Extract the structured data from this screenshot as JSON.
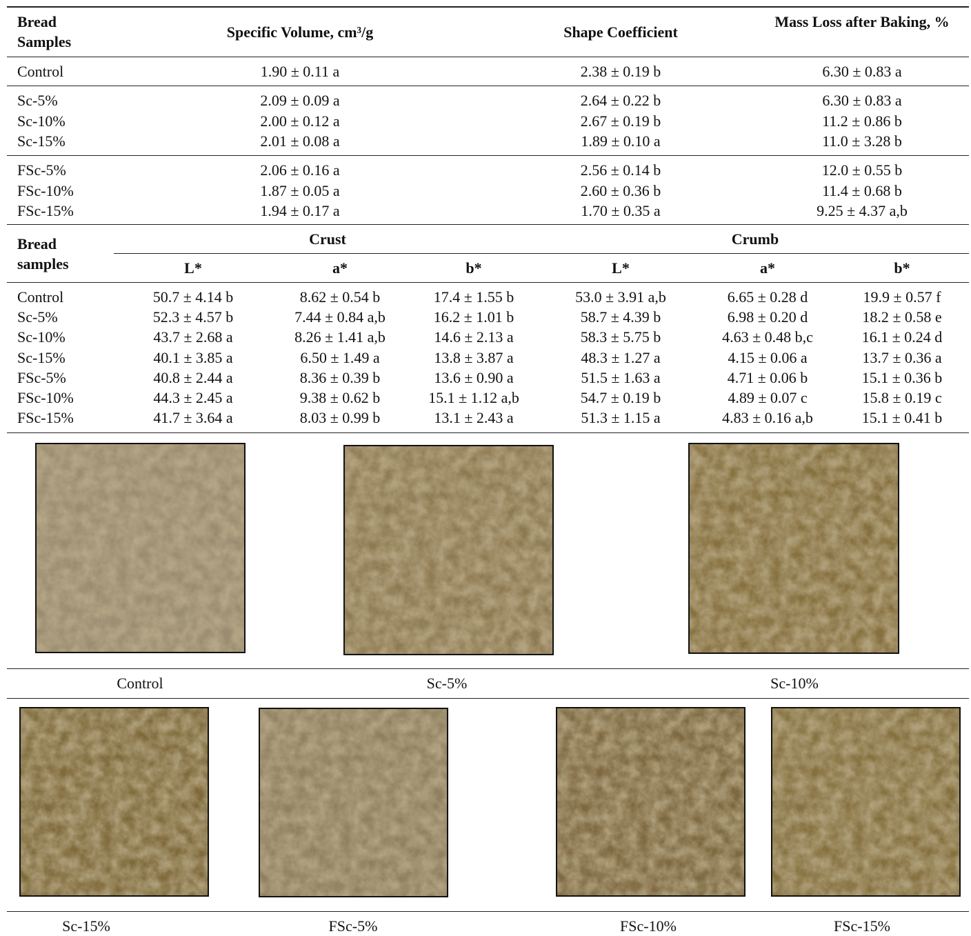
{
  "table1": {
    "header": [
      "Bread Samples",
      "Specific Volume, cm³/g",
      "Shape Coefficient",
      "Mass Loss after Baking, %"
    ],
    "groups": [
      [
        [
          "Control",
          "1.90 ± 0.11 a",
          "2.38 ± 0.19 b",
          "6.30 ± 0.83 a"
        ]
      ],
      [
        [
          "Sc-5%",
          "2.09 ± 0.09 a",
          "2.64 ± 0.22 b",
          "6.30 ± 0.83 a"
        ],
        [
          "Sc-10%",
          "2.00 ± 0.12 a",
          "2.67 ± 0.19 b",
          "11.2 ± 0.86 b"
        ],
        [
          "Sc-15%",
          "2.01 ± 0.08 a",
          "1.89 ± 0.10 a",
          "11.0 ± 3.28 b"
        ]
      ],
      [
        [
          "FSc-5%",
          "2.06 ± 0.16 a",
          "2.56 ± 0.14 b",
          "12.0 ± 0.55 b"
        ],
        [
          "FSc-10%",
          "1.87 ± 0.05 a",
          "2.60 ± 0.36 b",
          "11.4 ± 0.68 b"
        ],
        [
          "FSc-15%",
          "1.94 ± 0.17 a",
          "1.70 ± 0.35 a",
          "9.25 ± 4.37 a,b"
        ]
      ]
    ]
  },
  "table2": {
    "header": {
      "sample": "Bread samples",
      "crust": "Crust",
      "crumb": "Crumb",
      "columns": [
        "L*",
        "a*",
        "b*",
        "L*",
        "a*",
        "b*"
      ]
    },
    "rows": [
      [
        "Control",
        "50.7 ± 4.14 b",
        "8.62 ± 0.54 b",
        "17.4 ± 1.55 b",
        "53.0 ± 3.91 a,b",
        "6.65 ± 0.28 d",
        "19.9 ± 0.57 f"
      ],
      [
        "Sc-5%",
        "52.3 ± 4.57 b",
        "7.44 ± 0.84 a,b",
        "16.2 ± 1.01 b",
        "58.7 ± 4.39 b",
        "6.98 ± 0.20 d",
        "18.2 ± 0.58 e"
      ],
      [
        "Sc-10%",
        "43.7 ± 2.68 a",
        "8.26 ± 1.41 a,b",
        "14.6 ± 2.13 a",
        "58.3 ± 5.75 b",
        "4.63 ± 0.48 b,c",
        "16.1 ± 0.24 d"
      ],
      [
        "Sc-15%",
        "40.1 ± 3.85 a",
        "6.50 ± 1.49 a",
        "13.8 ± 3.87 a",
        "48.3 ± 1.27 a",
        "4.15 ± 0.06 a",
        "13.7 ± 0.36 a"
      ],
      [
        "FSc-5%",
        "40.8 ± 2.44 a",
        "8.36 ± 0.39 b",
        "13.6 ± 0.90 a",
        "51.5 ± 1.63 a",
        "4.71 ± 0.06 b",
        "15.1 ± 0.36 b"
      ],
      [
        "FSc-10%",
        "44.3 ± 2.45 a",
        "9.38 ± 0.62 b",
        "15.1 ± 1.12 a,b",
        "54.7 ± 0.19 b",
        "4.89 ± 0.07 c",
        "15.8 ± 0.19 c"
      ],
      [
        "FSc-15%",
        "41.7 ± 3.64 a",
        "8.03 ± 0.99 b",
        "13.1 ± 2.43 a",
        "51.3 ± 1.15 a",
        "4.83 ± 0.16 a,b",
        "15.1 ± 0.41 b"
      ]
    ]
  },
  "figure": {
    "captions": [
      "Control",
      "Sc-5%",
      "Sc-10%",
      "Sc-15%",
      "FSc-5%",
      "FSc-10%",
      "FSc-15%"
    ]
  }
}
